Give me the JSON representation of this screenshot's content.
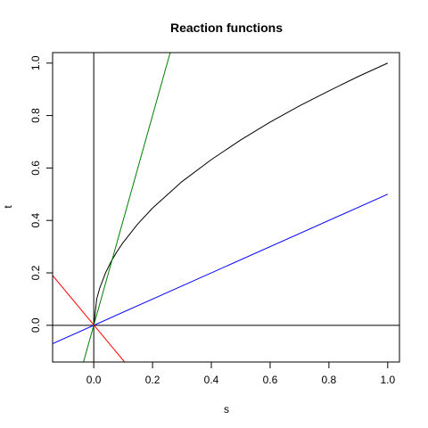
{
  "chart_data": {
    "type": "line",
    "title": "Reaction functions",
    "xlabel": "s",
    "ylabel": "t",
    "xlim": [
      -0.14,
      1.04
    ],
    "ylim": [
      -0.14,
      1.04
    ],
    "x_ticks": [
      "0.0",
      "0.2",
      "0.4",
      "0.6",
      "0.8",
      "1.0"
    ],
    "y_ticks": [
      "0.0",
      "0.2",
      "0.4",
      "0.6",
      "0.8",
      "1.0"
    ],
    "grid": false,
    "reference_lines": [
      {
        "axis": "x",
        "value": 0,
        "color": "#000000"
      },
      {
        "axis": "y",
        "value": 0,
        "color": "#000000"
      }
    ],
    "series": [
      {
        "color": "#000000",
        "x": [
          0,
          0.01,
          0.02,
          0.04,
          0.06,
          0.08,
          0.1,
          0.15,
          0.2,
          0.3,
          0.4,
          0.5,
          0.6,
          0.7,
          0.8,
          0.9,
          1.0
        ],
        "y": [
          0,
          0.1,
          0.141,
          0.2,
          0.245,
          0.283,
          0.316,
          0.387,
          0.447,
          0.548,
          0.632,
          0.707,
          0.775,
          0.837,
          0.894,
          0.949,
          1.0
        ]
      },
      {
        "color": "#0000ff",
        "x": [
          -0.14,
          1.0
        ],
        "y": [
          -0.07,
          0.5
        ]
      },
      {
        "color": "#008000",
        "x": [
          -0.035,
          0.26
        ],
        "y": [
          -0.14,
          1.04
        ]
      },
      {
        "color": "#ff0000",
        "x": [
          -0.14,
          0.105
        ],
        "y": [
          0.19,
          -0.14
        ]
      }
    ]
  }
}
